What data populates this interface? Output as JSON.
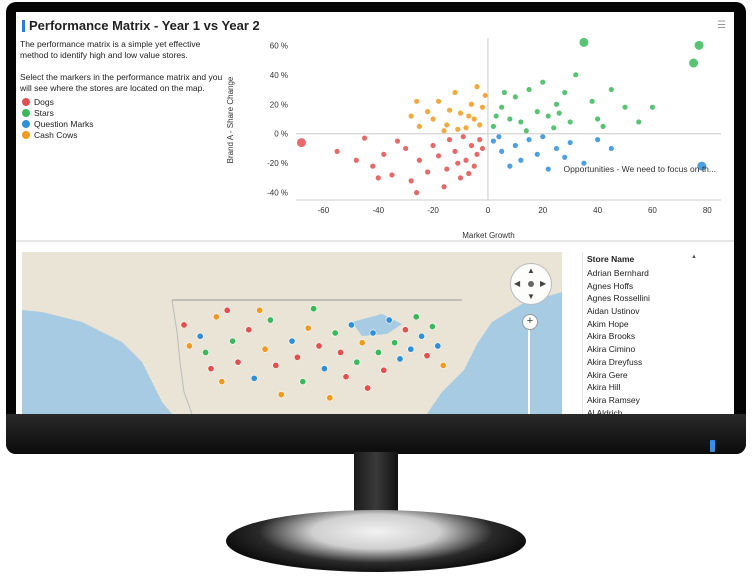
{
  "header": {
    "title": "Performance Matrix - Year 1 vs Year 2"
  },
  "description": {
    "p1": "The performance matrix is a simple yet effective method to identify high and low value stores.",
    "p2": "Select the markers in the performance matrix and you will see where the stores are located on the map."
  },
  "legend": [
    {
      "label": "Dogs",
      "color": "#e05050"
    },
    {
      "label": "Stars",
      "color": "#3cb85c"
    },
    {
      "label": "Question Marks",
      "color": "#2f8fd8"
    },
    {
      "label": "Cash Cows",
      "color": "#f09a20"
    }
  ],
  "chart_data": {
    "type": "scatter",
    "xlabel": "Market Growth",
    "ylabel": "Brand A - Share Change",
    "xlim": [
      -70,
      85
    ],
    "ylim": [
      -45,
      65
    ],
    "x_ticks": [
      "-60",
      "-40",
      "-20",
      "0",
      "20",
      "40",
      "60",
      "80"
    ],
    "y_ticks": [
      "60 %",
      "40 %",
      "20 %",
      "0 %",
      "-20 %",
      "-40 %"
    ],
    "annotation": "Opportunities - We need to focus on th...",
    "series": [
      {
        "name": "Dogs",
        "color": "#e05050",
        "points": [
          [
            -68,
            -6
          ],
          [
            -55,
            -12
          ],
          [
            -48,
            -18
          ],
          [
            -42,
            -22
          ],
          [
            -38,
            -14
          ],
          [
            -35,
            -28
          ],
          [
            -30,
            -10
          ],
          [
            -28,
            -32
          ],
          [
            -25,
            -18
          ],
          [
            -22,
            -26
          ],
          [
            -20,
            -8
          ],
          [
            -18,
            -15
          ],
          [
            -15,
            -24
          ],
          [
            -14,
            -4
          ],
          [
            -12,
            -12
          ],
          [
            -10,
            -30
          ],
          [
            -8,
            -18
          ],
          [
            -6,
            -8
          ],
          [
            -5,
            -22
          ],
          [
            -4,
            -14
          ],
          [
            -3,
            -4
          ],
          [
            -2,
            -10
          ],
          [
            -33,
            -5
          ],
          [
            -45,
            -3
          ],
          [
            -40,
            -30
          ],
          [
            -26,
            -40
          ],
          [
            -16,
            -36
          ],
          [
            -9,
            -2
          ],
          [
            -11,
            -20
          ],
          [
            -7,
            -27
          ]
        ]
      },
      {
        "name": "Stars",
        "color": "#3cb85c",
        "points": [
          [
            2,
            5
          ],
          [
            5,
            18
          ],
          [
            8,
            10
          ],
          [
            10,
            25
          ],
          [
            12,
            8
          ],
          [
            15,
            30
          ],
          [
            18,
            15
          ],
          [
            20,
            35
          ],
          [
            22,
            12
          ],
          [
            25,
            20
          ],
          [
            28,
            28
          ],
          [
            30,
            8
          ],
          [
            35,
            62
          ],
          [
            38,
            22
          ],
          [
            40,
            10
          ],
          [
            45,
            30
          ],
          [
            50,
            18
          ],
          [
            55,
            8
          ],
          [
            60,
            18
          ],
          [
            75,
            48
          ],
          [
            77,
            60
          ],
          [
            3,
            12
          ],
          [
            6,
            28
          ],
          [
            14,
            2
          ],
          [
            24,
            4
          ],
          [
            32,
            40
          ],
          [
            42,
            5
          ],
          [
            26,
            14
          ]
        ]
      },
      {
        "name": "Question Marks",
        "color": "#2f8fd8",
        "points": [
          [
            2,
            -5
          ],
          [
            5,
            -12
          ],
          [
            8,
            -22
          ],
          [
            10,
            -8
          ],
          [
            12,
            -18
          ],
          [
            15,
            -4
          ],
          [
            18,
            -14
          ],
          [
            22,
            -24
          ],
          [
            25,
            -10
          ],
          [
            30,
            -6
          ],
          [
            35,
            -20
          ],
          [
            40,
            -4
          ],
          [
            78,
            -22
          ],
          [
            4,
            -2
          ],
          [
            20,
            -2
          ],
          [
            28,
            -16
          ],
          [
            45,
            -10
          ]
        ]
      },
      {
        "name": "Cash Cows",
        "color": "#f09a20",
        "points": [
          [
            -25,
            5
          ],
          [
            -22,
            15
          ],
          [
            -20,
            10
          ],
          [
            -18,
            22
          ],
          [
            -15,
            6
          ],
          [
            -12,
            28
          ],
          [
            -10,
            14
          ],
          [
            -8,
            4
          ],
          [
            -6,
            20
          ],
          [
            -5,
            10
          ],
          [
            -4,
            32
          ],
          [
            -3,
            6
          ],
          [
            -2,
            18
          ],
          [
            -1,
            26
          ],
          [
            -26,
            22
          ],
          [
            -16,
            2
          ],
          [
            -11,
            3
          ],
          [
            -28,
            12
          ],
          [
            -7,
            12
          ],
          [
            -14,
            16
          ]
        ]
      }
    ]
  },
  "map": {
    "nav_arrows": {
      "up": "▲",
      "down": "▼",
      "left": "◀",
      "right": "▶"
    },
    "zoom_plus": "+",
    "markers": [
      {
        "x": 0.3,
        "y": 0.45,
        "category": "Dogs"
      },
      {
        "x": 0.31,
        "y": 0.58,
        "category": "Cash Cows"
      },
      {
        "x": 0.33,
        "y": 0.52,
        "category": "Question Marks"
      },
      {
        "x": 0.34,
        "y": 0.62,
        "category": "Stars"
      },
      {
        "x": 0.35,
        "y": 0.72,
        "category": "Dogs"
      },
      {
        "x": 0.36,
        "y": 0.4,
        "category": "Cash Cows"
      },
      {
        "x": 0.37,
        "y": 0.8,
        "category": "Cash Cows"
      },
      {
        "x": 0.39,
        "y": 0.55,
        "category": "Stars"
      },
      {
        "x": 0.4,
        "y": 0.68,
        "category": "Dogs"
      },
      {
        "x": 0.42,
        "y": 0.48,
        "category": "Dogs"
      },
      {
        "x": 0.43,
        "y": 0.78,
        "category": "Question Marks"
      },
      {
        "x": 0.45,
        "y": 0.6,
        "category": "Cash Cows"
      },
      {
        "x": 0.46,
        "y": 0.42,
        "category": "Stars"
      },
      {
        "x": 0.47,
        "y": 0.7,
        "category": "Dogs"
      },
      {
        "x": 0.48,
        "y": 0.88,
        "category": "Cash Cows"
      },
      {
        "x": 0.5,
        "y": 0.55,
        "category": "Question Marks"
      },
      {
        "x": 0.51,
        "y": 0.65,
        "category": "Dogs"
      },
      {
        "x": 0.52,
        "y": 0.8,
        "category": "Stars"
      },
      {
        "x": 0.53,
        "y": 0.47,
        "category": "Cash Cows"
      },
      {
        "x": 0.55,
        "y": 0.58,
        "category": "Dogs"
      },
      {
        "x": 0.56,
        "y": 0.72,
        "category": "Question Marks"
      },
      {
        "x": 0.57,
        "y": 0.9,
        "category": "Cash Cows"
      },
      {
        "x": 0.58,
        "y": 0.5,
        "category": "Stars"
      },
      {
        "x": 0.59,
        "y": 0.62,
        "category": "Dogs"
      },
      {
        "x": 0.6,
        "y": 0.77,
        "category": "Dogs"
      },
      {
        "x": 0.61,
        "y": 0.45,
        "category": "Question Marks"
      },
      {
        "x": 0.62,
        "y": 0.68,
        "category": "Stars"
      },
      {
        "x": 0.63,
        "y": 0.56,
        "category": "Cash Cows"
      },
      {
        "x": 0.64,
        "y": 0.84,
        "category": "Dogs"
      },
      {
        "x": 0.65,
        "y": 0.5,
        "category": "Question Marks"
      },
      {
        "x": 0.66,
        "y": 0.62,
        "category": "Stars"
      },
      {
        "x": 0.67,
        "y": 0.73,
        "category": "Dogs"
      },
      {
        "x": 0.68,
        "y": 0.42,
        "category": "Question Marks"
      },
      {
        "x": 0.69,
        "y": 0.56,
        "category": "Stars"
      },
      {
        "x": 0.7,
        "y": 0.66,
        "category": "Question Marks"
      },
      {
        "x": 0.71,
        "y": 0.48,
        "category": "Dogs"
      },
      {
        "x": 0.72,
        "y": 0.6,
        "category": "Question Marks"
      },
      {
        "x": 0.73,
        "y": 0.4,
        "category": "Stars"
      },
      {
        "x": 0.74,
        "y": 0.52,
        "category": "Question Marks"
      },
      {
        "x": 0.75,
        "y": 0.64,
        "category": "Dogs"
      },
      {
        "x": 0.76,
        "y": 0.46,
        "category": "Stars"
      },
      {
        "x": 0.77,
        "y": 0.58,
        "category": "Question Marks"
      },
      {
        "x": 0.78,
        "y": 0.7,
        "category": "Cash Cows"
      },
      {
        "x": 0.54,
        "y": 0.35,
        "category": "Stars"
      },
      {
        "x": 0.44,
        "y": 0.36,
        "category": "Cash Cows"
      },
      {
        "x": 0.38,
        "y": 0.36,
        "category": "Dogs"
      }
    ]
  },
  "store_list": {
    "header": "Store Name",
    "sort_icon": "▲",
    "items": [
      "Adrian Bernhard",
      "Agnes Hoffs",
      "Agnes Rossellini",
      "Aidan Ustinov",
      "Akim Hope",
      "Akira Brooks",
      "Akira Cimino",
      "Akira Dreyfuss",
      "Akira Gere",
      "Akira Hill",
      "Akira Ramsey",
      "Al Aldrich"
    ]
  }
}
